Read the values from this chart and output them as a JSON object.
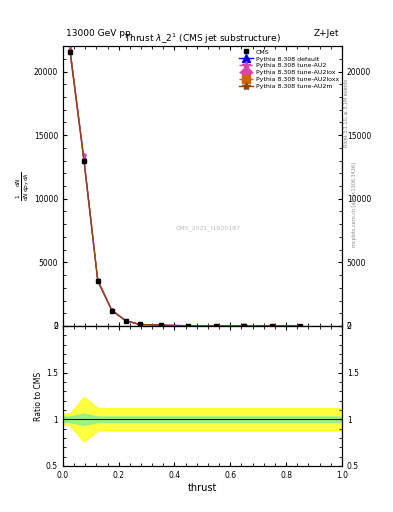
{
  "title": "Thrust $\\lambda\\_2^1$ (CMS jet substructure)",
  "top_label_left": "13000 GeV pp",
  "top_label_right": "Z+Jet",
  "watermark": "CMS_2021_I1920187",
  "xlabel": "thrust",
  "ylim_main": [
    0,
    22000
  ],
  "ylim_ratio": [
    0.5,
    2.0
  ],
  "xlim": [
    0,
    1.0
  ],
  "x_bins": [
    0.025,
    0.075,
    0.125,
    0.175,
    0.225,
    0.275,
    0.35,
    0.45,
    0.55,
    0.65,
    0.75,
    0.85,
    0.95
  ],
  "cms_y": [
    21500,
    13000,
    3500,
    1200,
    400,
    120,
    60,
    20,
    8,
    3,
    1,
    0.5,
    200
  ],
  "py_default": [
    21800,
    13200,
    3600,
    1250,
    420,
    125,
    62,
    21,
    9,
    3,
    1,
    0.5,
    200
  ],
  "py_au2": [
    22000,
    13400,
    3650,
    1280,
    430,
    128,
    63,
    22,
    9,
    3,
    1,
    0.5,
    200
  ],
  "py_au2lox": [
    21600,
    13100,
    3550,
    1230,
    415,
    122,
    61,
    21,
    8,
    3,
    1,
    0.5,
    200
  ],
  "py_au2loxx": [
    21700,
    13150,
    3580,
    1240,
    418,
    124,
    62,
    21,
    9,
    3,
    1,
    0.5,
    200
  ],
  "py_au2m": [
    21650,
    13050,
    3520,
    1220,
    410,
    120,
    60,
    20,
    8,
    2.5,
    1,
    0.5,
    200
  ],
  "cms_color": "#000000",
  "default_color": "#0000ee",
  "au2_color": "#dd44aa",
  "au2lox_color": "#dd44aa",
  "au2loxx_color": "#cc6600",
  "au2m_color": "#8b4513",
  "ratio_ref": 1.0,
  "yellow_x": [
    0.0,
    0.025,
    0.075,
    0.125,
    0.3,
    1.0
  ],
  "yellow_lo": [
    0.94,
    0.94,
    0.76,
    0.88,
    0.88,
    0.88
  ],
  "yellow_hi": [
    1.06,
    1.06,
    1.24,
    1.12,
    1.12,
    1.12
  ],
  "green_x": [
    0.0,
    0.025,
    0.075,
    0.125,
    0.3,
    1.0
  ],
  "green_lo": [
    0.97,
    0.97,
    0.94,
    0.97,
    0.97,
    0.97
  ],
  "green_hi": [
    1.03,
    1.03,
    1.06,
    1.03,
    1.03,
    1.03
  ]
}
